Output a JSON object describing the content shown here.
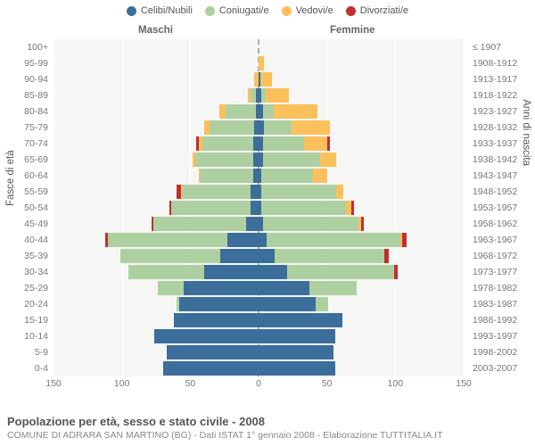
{
  "legend": {
    "items": [
      {
        "label": "Celibi/Nubili",
        "color": "#3b6e9a"
      },
      {
        "label": "Coniugati/e",
        "color": "#aed0a0"
      },
      {
        "label": "Vedovi/e",
        "color": "#fcc05b"
      },
      {
        "label": "Divorziati/e",
        "color": "#c22f2f"
      }
    ]
  },
  "headers": {
    "male": "Maschi",
    "female": "Femmine"
  },
  "axis": {
    "y_title_left": "Fasce di età",
    "y_title_right": "Anni di nascita",
    "xmax": 150,
    "xticks": [
      150,
      100,
      50,
      0,
      50,
      100,
      150
    ]
  },
  "colors": {
    "celibi": "#3b6e9a",
    "coniug": "#aed0a0",
    "vedovi": "#fcc05b",
    "divorz": "#c22f2f",
    "plot_bg": "#f6f6f4",
    "grid": "#ffffff"
  },
  "footer": {
    "title": "Popolazione per età, sesso e stato civile - 2008",
    "subtitle": "COMUNE DI ADRARA SAN MARTINO (BG) - Dati ISTAT 1° gennaio 2008 - Elaborazione TUTTITALIA.IT"
  },
  "rows": [
    {
      "age": "100+",
      "year": "≤ 1907",
      "m": {
        "c": 0,
        "g": 0,
        "v": 0,
        "d": 0
      },
      "f": {
        "c": 0,
        "g": 0,
        "v": 0,
        "d": 0
      }
    },
    {
      "age": "95-99",
      "year": "1908-1912",
      "m": {
        "c": 0,
        "g": 0,
        "v": 0,
        "d": 0
      },
      "f": {
        "c": 0,
        "g": 0,
        "v": 4,
        "d": 0
      }
    },
    {
      "age": "90-94",
      "year": "1913-1917",
      "m": {
        "c": 0,
        "g": 0,
        "v": 3,
        "d": 0
      },
      "f": {
        "c": 1,
        "g": 1,
        "v": 8,
        "d": 0
      }
    },
    {
      "age": "85-89",
      "year": "1918-1922",
      "m": {
        "c": 2,
        "g": 4,
        "v": 2,
        "d": 0
      },
      "f": {
        "c": 2,
        "g": 3,
        "v": 17,
        "d": 0
      }
    },
    {
      "age": "80-84",
      "year": "1923-1927",
      "m": {
        "c": 2,
        "g": 22,
        "v": 5,
        "d": 0
      },
      "f": {
        "c": 3,
        "g": 8,
        "v": 32,
        "d": 0
      }
    },
    {
      "age": "75-79",
      "year": "1928-1932",
      "m": {
        "c": 3,
        "g": 33,
        "v": 4,
        "d": 0
      },
      "f": {
        "c": 4,
        "g": 20,
        "v": 28,
        "d": 0
      }
    },
    {
      "age": "70-74",
      "year": "1933-1937",
      "m": {
        "c": 4,
        "g": 37,
        "v": 3,
        "d": 2
      },
      "f": {
        "c": 3,
        "g": 30,
        "v": 17,
        "d": 2
      }
    },
    {
      "age": "65-69",
      "year": "1938-1942",
      "m": {
        "c": 4,
        "g": 42,
        "v": 2,
        "d": 0
      },
      "f": {
        "c": 3,
        "g": 42,
        "v": 12,
        "d": 0
      }
    },
    {
      "age": "60-64",
      "year": "1943-1947",
      "m": {
        "c": 4,
        "g": 39,
        "v": 1,
        "d": 0
      },
      "f": {
        "c": 2,
        "g": 38,
        "v": 10,
        "d": 0
      }
    },
    {
      "age": "55-59",
      "year": "1948-1952",
      "m": {
        "c": 6,
        "g": 50,
        "v": 1,
        "d": 3
      },
      "f": {
        "c": 2,
        "g": 55,
        "v": 5,
        "d": 0
      }
    },
    {
      "age": "50-54",
      "year": "1953-1957",
      "m": {
        "c": 6,
        "g": 58,
        "v": 0,
        "d": 1
      },
      "f": {
        "c": 2,
        "g": 62,
        "v": 4,
        "d": 2
      }
    },
    {
      "age": "45-49",
      "year": "1958-1962",
      "m": {
        "c": 9,
        "g": 68,
        "v": 0,
        "d": 1
      },
      "f": {
        "c": 3,
        "g": 70,
        "v": 2,
        "d": 2
      }
    },
    {
      "age": "40-44",
      "year": "1963-1967",
      "m": {
        "c": 23,
        "g": 87,
        "v": 0,
        "d": 2
      },
      "f": {
        "c": 6,
        "g": 98,
        "v": 1,
        "d": 3
      }
    },
    {
      "age": "35-39",
      "year": "1968-1972",
      "m": {
        "c": 28,
        "g": 73,
        "v": 0,
        "d": 0
      },
      "f": {
        "c": 12,
        "g": 80,
        "v": 0,
        "d": 3
      }
    },
    {
      "age": "30-34",
      "year": "1973-1977",
      "m": {
        "c": 40,
        "g": 55,
        "v": 0,
        "d": 0
      },
      "f": {
        "c": 21,
        "g": 78,
        "v": 0,
        "d": 3
      }
    },
    {
      "age": "25-29",
      "year": "1978-1982",
      "m": {
        "c": 55,
        "g": 19,
        "v": 0,
        "d": 0
      },
      "f": {
        "c": 37,
        "g": 35,
        "v": 0,
        "d": 0
      }
    },
    {
      "age": "20-24",
      "year": "1983-1987",
      "m": {
        "c": 58,
        "g": 2,
        "v": 0,
        "d": 0
      },
      "f": {
        "c": 42,
        "g": 9,
        "v": 0,
        "d": 0
      }
    },
    {
      "age": "15-19",
      "year": "1988-1992",
      "m": {
        "c": 62,
        "g": 0,
        "v": 0,
        "d": 0
      },
      "f": {
        "c": 61,
        "g": 0,
        "v": 0,
        "d": 0
      }
    },
    {
      "age": "10-14",
      "year": "1993-1997",
      "m": {
        "c": 76,
        "g": 0,
        "v": 0,
        "d": 0
      },
      "f": {
        "c": 56,
        "g": 0,
        "v": 0,
        "d": 0
      }
    },
    {
      "age": "5-9",
      "year": "1998-2002",
      "m": {
        "c": 67,
        "g": 0,
        "v": 0,
        "d": 0
      },
      "f": {
        "c": 55,
        "g": 0,
        "v": 0,
        "d": 0
      }
    },
    {
      "age": "0-4",
      "year": "2003-2007",
      "m": {
        "c": 70,
        "g": 0,
        "v": 0,
        "d": 0
      },
      "f": {
        "c": 56,
        "g": 0,
        "v": 0,
        "d": 0
      }
    }
  ]
}
